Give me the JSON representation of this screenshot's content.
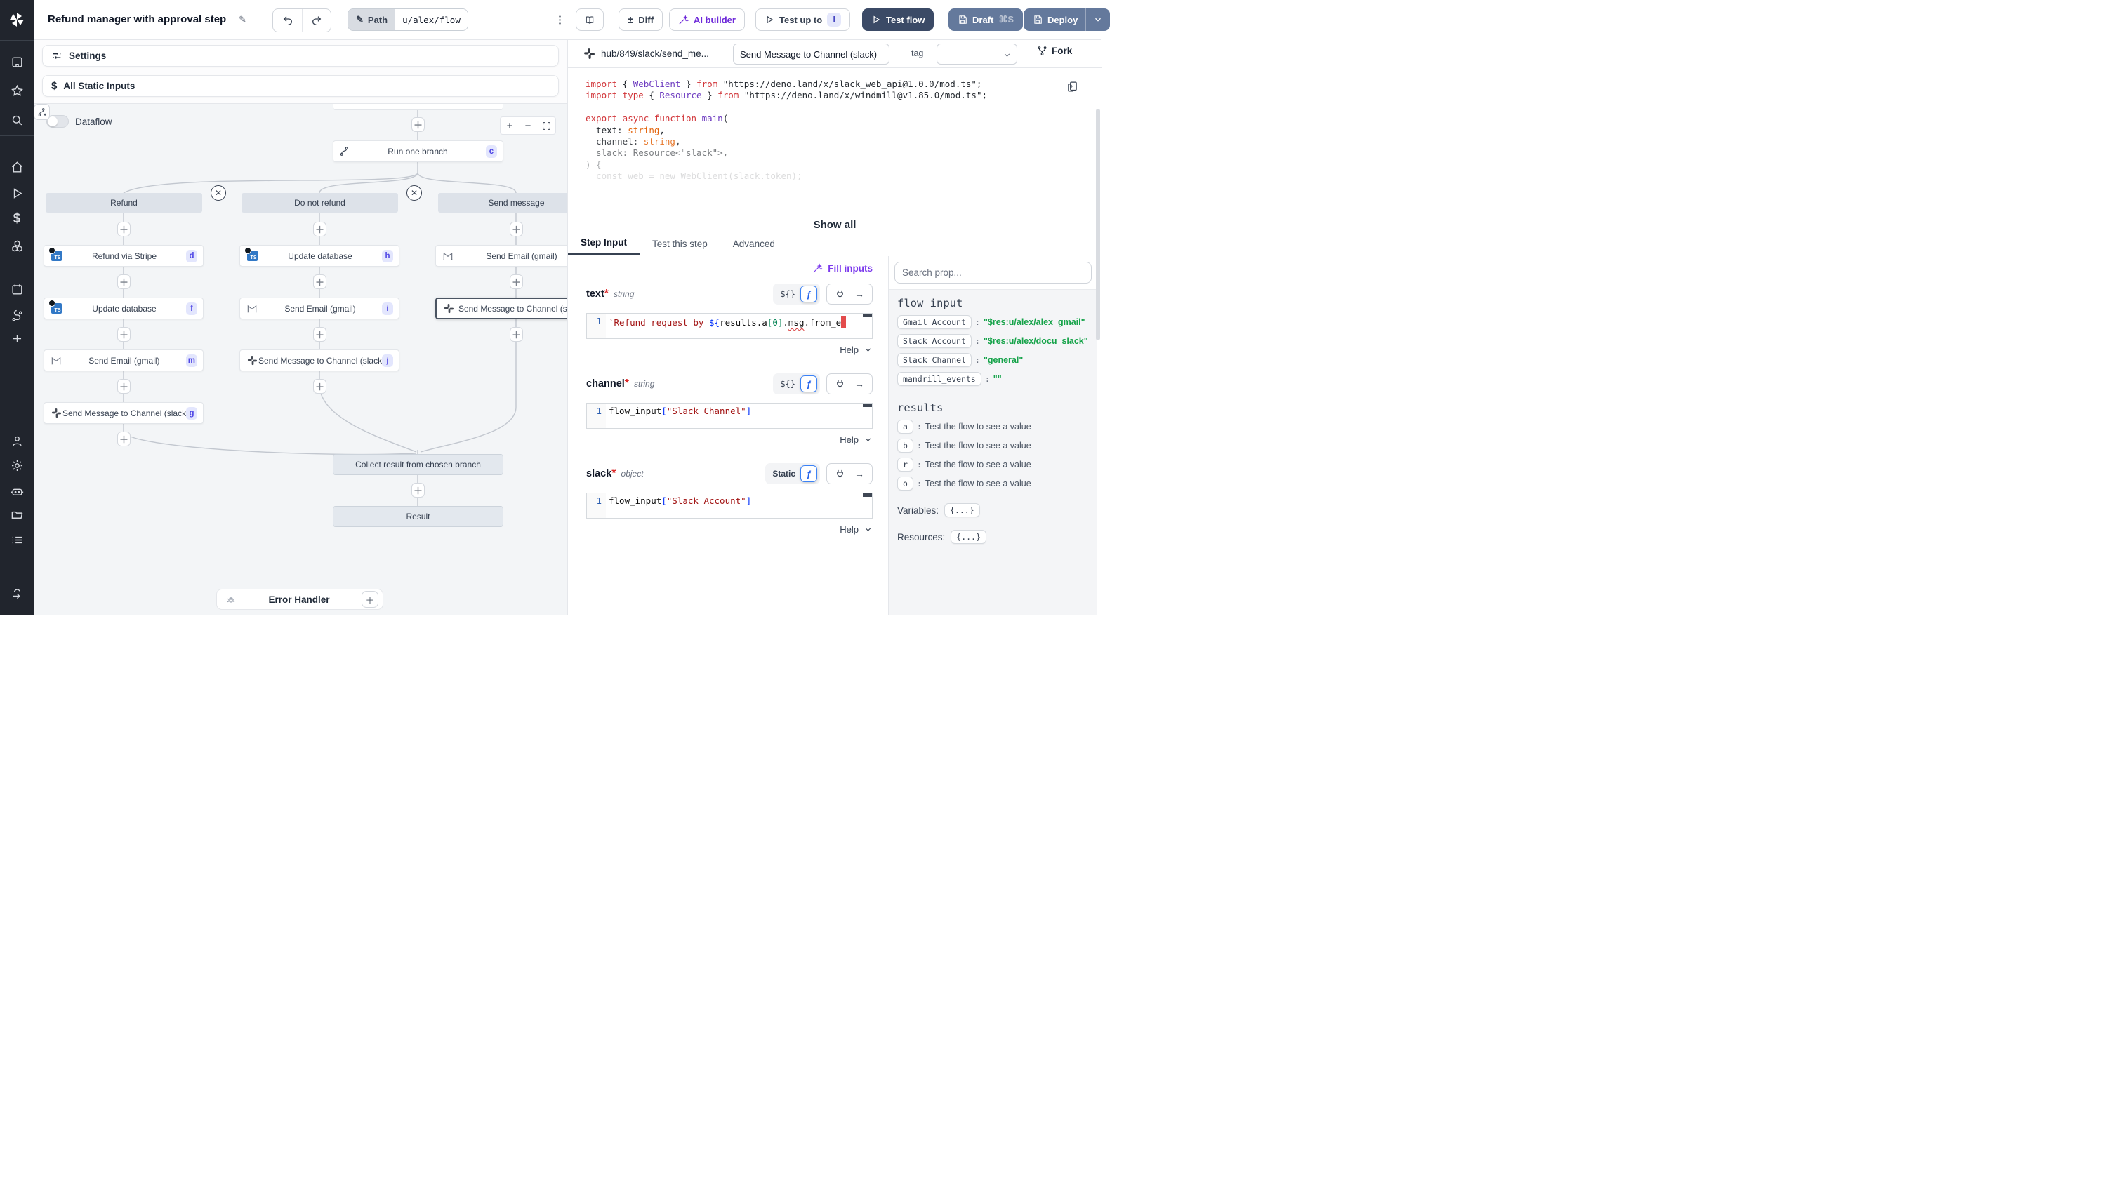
{
  "topbar": {
    "title": "Refund manager with approval step",
    "path_label": "Path",
    "path_value": "u/alex/flow",
    "diff": "Diff",
    "ai_builder": "AI builder",
    "test_up_to": "Test up to",
    "test_up_to_badge": "l",
    "test_flow": "Test flow",
    "draft": "Draft",
    "draft_shortcut": "⌘S",
    "deploy": "Deploy"
  },
  "sidebar": {
    "icons": [
      "windmill-logo",
      "workspace",
      "star",
      "search",
      "home",
      "runs",
      "variables",
      "resources",
      "schedules",
      "routes",
      "add",
      "user",
      "settings",
      "workers",
      "folders",
      "logs",
      "exit"
    ]
  },
  "flow": {
    "settings": "Settings",
    "static_inputs": "All Static Inputs",
    "dataflow": "Dataflow",
    "zoom_in": "+",
    "zoom_out": "−",
    "run_one_branch": {
      "label": "Run one branch",
      "badge": "c"
    },
    "branches": [
      {
        "label": "Refund"
      },
      {
        "label": "Do not refund"
      },
      {
        "label": "Send message"
      }
    ],
    "nodes": [
      {
        "label": "Refund via Stripe",
        "badge": "d",
        "icon": "typescript"
      },
      {
        "label": "Update database",
        "badge": "h",
        "icon": "typescript"
      },
      {
        "label": "Send Email (gmail)",
        "badge": "",
        "icon": "gmail"
      },
      {
        "label": "Update database",
        "badge": "f",
        "icon": "typescript"
      },
      {
        "label": "Send Email (gmail)",
        "badge": "i",
        "icon": "gmail"
      },
      {
        "label": "Send Message to Channel (slack)",
        "badge": "",
        "icon": "slack"
      },
      {
        "label": "Send Email (gmail)",
        "badge": "m",
        "icon": "gmail"
      },
      {
        "label": "Send Message to Channel (slack)",
        "badge": "j",
        "icon": "slack"
      },
      {
        "label": "Send Message to Channel (slack)",
        "badge": "g",
        "icon": "slack"
      }
    ],
    "collect": "Collect result from chosen branch",
    "result": "Result",
    "error_handler": "Error Handler"
  },
  "script": {
    "path": "hub/849/slack/send_me...",
    "summary": "Send Message to Channel (slack)",
    "tag_label": "tag",
    "fork": "Fork",
    "show_all": "Show all",
    "code_lines": [
      [
        {
          "c": "kw",
          "t": "import"
        },
        {
          "c": "pl",
          "t": " { "
        },
        {
          "c": "typ",
          "t": "WebClient"
        },
        {
          "c": "pl",
          "t": " } "
        },
        {
          "c": "kw",
          "t": "from"
        },
        {
          "c": "pl",
          "t": " "
        },
        {
          "c": "str",
          "t": "\"https://deno.land/x/slack_web_api@1.0.0/mod.ts\""
        },
        {
          "c": "pl",
          "t": ";"
        }
      ],
      [
        {
          "c": "kw",
          "t": "import type"
        },
        {
          "c": "pl",
          "t": " { "
        },
        {
          "c": "typ",
          "t": "Resource"
        },
        {
          "c": "pl",
          "t": " } "
        },
        {
          "c": "kw",
          "t": "from"
        },
        {
          "c": "pl",
          "t": " "
        },
        {
          "c": "str",
          "t": "\"https://deno.land/x/windmill@v1.85.0/mod.ts\""
        },
        {
          "c": "pl",
          "t": ";"
        }
      ],
      [],
      [
        {
          "c": "kw",
          "t": "export async function "
        },
        {
          "c": "typ",
          "t": "main"
        },
        {
          "c": "pl",
          "t": "("
        }
      ],
      [
        {
          "c": "pl",
          "t": "  text: "
        },
        {
          "c": "orange",
          "t": "string"
        },
        {
          "c": "pl",
          "t": ","
        }
      ],
      [
        {
          "c": "pl",
          "t": "  channel: "
        },
        {
          "c": "orange",
          "t": "string"
        },
        {
          "c": "pl",
          "t": ","
        }
      ],
      [
        {
          "c": "pl",
          "t": "  slack: Resource<\"slack\">,"
        }
      ],
      [
        {
          "c": "pl",
          "t": ") {"
        }
      ],
      [
        {
          "c": "pl",
          "t": "  const web = new WebClient(slack.token);"
        }
      ]
    ]
  },
  "tabs": [
    {
      "label": "Step Input"
    },
    {
      "label": "Test this step"
    },
    {
      "label": "Advanced"
    }
  ],
  "step": {
    "fill_inputs": "Fill inputs",
    "help": "Help",
    "line_no": "1",
    "fields": [
      {
        "name": "text",
        "star": "*",
        "type": "string",
        "mode": "${}"
      },
      {
        "name": "channel",
        "star": "*",
        "type": "string",
        "mode": "${}"
      },
      {
        "name": "slack",
        "star": "*",
        "type": "object",
        "mode": "Static"
      }
    ],
    "editors": {
      "text": [
        {
          "c": "estr",
          "t": "`Refund request by "
        },
        {
          "c": "ebr",
          "t": "${"
        },
        {
          "c": "eplain",
          "t": "results.a"
        },
        {
          "c": "enum",
          "t": "[0]"
        },
        {
          "c": "eplain",
          "t": "."
        },
        {
          "c": "esq",
          "t": "msg"
        },
        {
          "c": "eplain",
          "t": ".from_e"
        },
        {
          "c": "cursor",
          "t": ""
        }
      ],
      "channel": [
        {
          "c": "eplain",
          "t": "flow_input"
        },
        {
          "c": "ebr",
          "t": "["
        },
        {
          "c": "estr",
          "t": "\"Slack Channel\""
        },
        {
          "c": "ebr",
          "t": "]"
        }
      ],
      "slack": [
        {
          "c": "eplain",
          "t": "flow_input"
        },
        {
          "c": "ebr",
          "t": "["
        },
        {
          "c": "estr",
          "t": "\"Slack Account\""
        },
        {
          "c": "ebr",
          "t": "]"
        }
      ]
    }
  },
  "props": {
    "search_placeholder": "Search prop...",
    "flow_input_title": "flow_input",
    "flow_inputs": [
      {
        "key": "Gmail Account",
        "value": "\"$res:u/alex/alex_gmail\""
      },
      {
        "key": "Slack Account",
        "value": "\"$res:u/alex/docu_slack\""
      },
      {
        "key": "Slack Channel",
        "value": "\"general\""
      },
      {
        "key": "mandrill_events",
        "value": "\"\""
      }
    ],
    "results_title": "results",
    "results": [
      {
        "key": "a",
        "value": "Test the flow to see a value"
      },
      {
        "key": "b",
        "value": "Test the flow to see a value"
      },
      {
        "key": "r",
        "value": "Test the flow to see a value"
      },
      {
        "key": "o",
        "value": "Test the flow to see a value"
      }
    ],
    "variables_label": "Variables:",
    "variables_value": "{...}",
    "resources_label": "Resources:",
    "resources_value": "{...}"
  }
}
